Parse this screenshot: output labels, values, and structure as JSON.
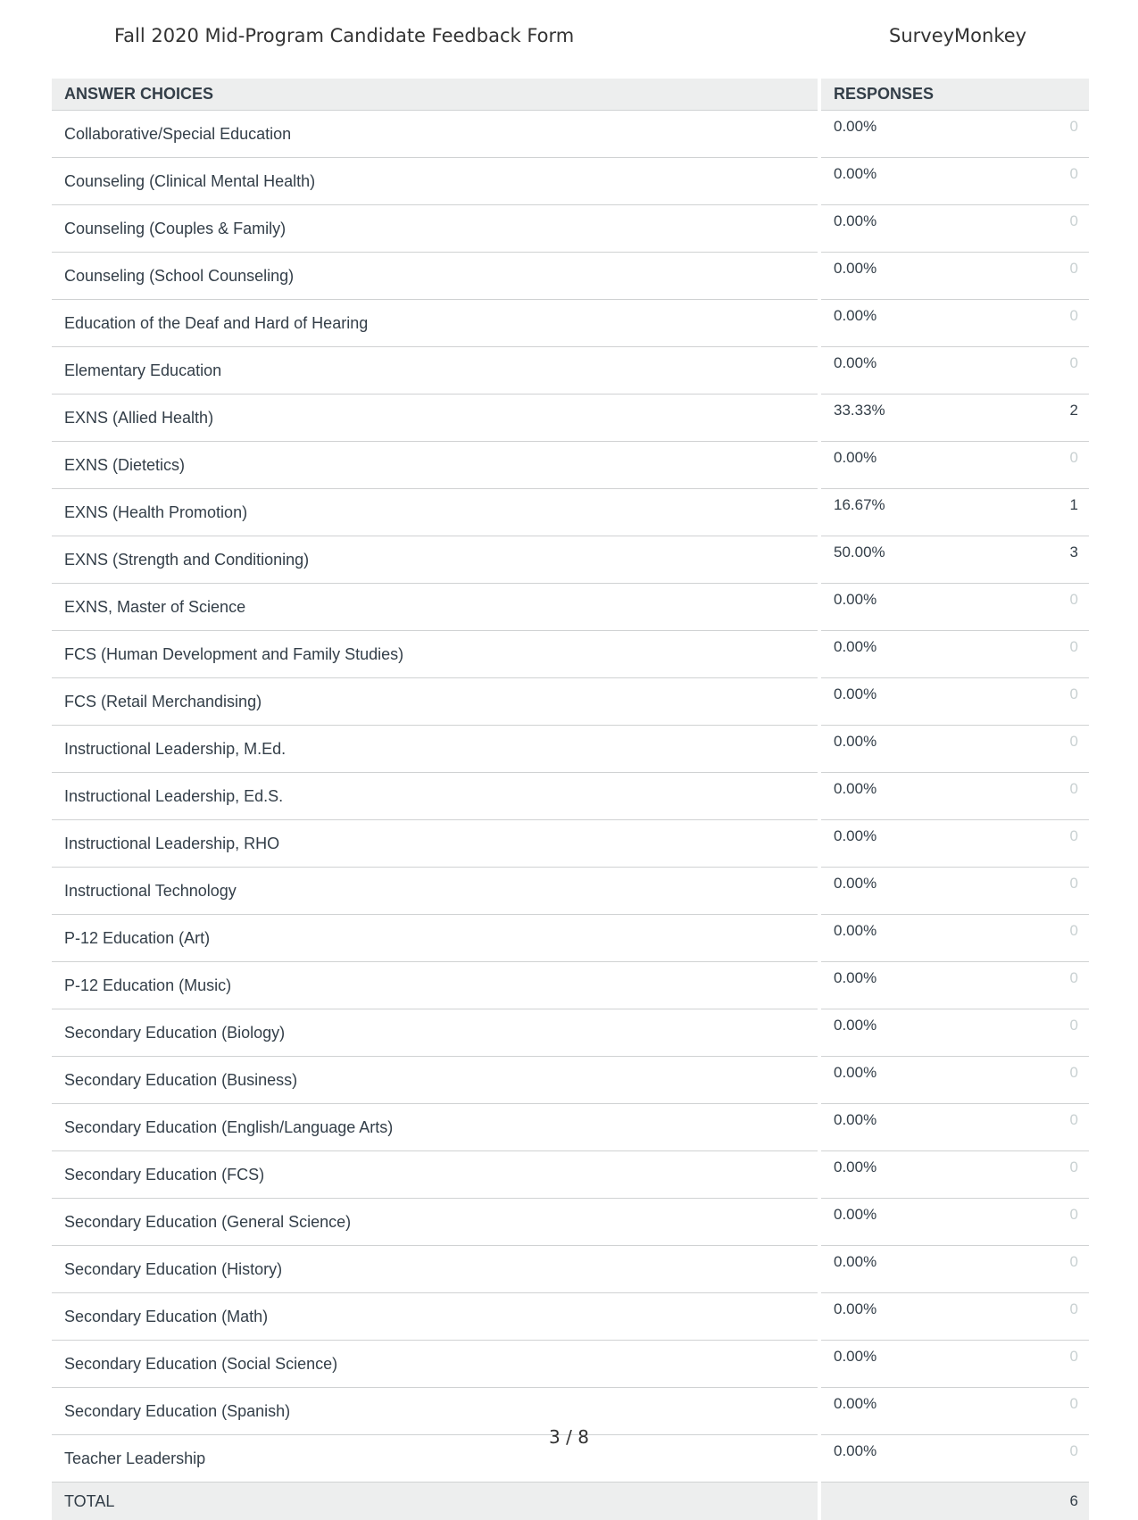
{
  "header": {
    "title": "Fall 2020 Mid-Program Candidate Feedback Form",
    "brand": "SurveyMonkey"
  },
  "table": {
    "col_choices": "ANSWER CHOICES",
    "col_responses": "RESPONSES",
    "rows": [
      {
        "label": "Collaborative/Special Education",
        "percent": "0.00%",
        "count": "0"
      },
      {
        "label": "Counseling (Clinical Mental Health)",
        "percent": "0.00%",
        "count": "0"
      },
      {
        "label": "Counseling (Couples & Family)",
        "percent": "0.00%",
        "count": "0"
      },
      {
        "label": "Counseling (School Counseling)",
        "percent": "0.00%",
        "count": "0"
      },
      {
        "label": "Education of the Deaf and Hard of Hearing",
        "percent": "0.00%",
        "count": "0"
      },
      {
        "label": "Elementary Education",
        "percent": "0.00%",
        "count": "0"
      },
      {
        "label": "EXNS (Allied Health)",
        "percent": "33.33%",
        "count": "2"
      },
      {
        "label": "EXNS (Dietetics)",
        "percent": "0.00%",
        "count": "0"
      },
      {
        "label": "EXNS (Health Promotion)",
        "percent": "16.67%",
        "count": "1"
      },
      {
        "label": "EXNS (Strength and Conditioning)",
        "percent": "50.00%",
        "count": "3"
      },
      {
        "label": "EXNS, Master of Science",
        "percent": "0.00%",
        "count": "0"
      },
      {
        "label": "FCS (Human Development and Family Studies)",
        "percent": "0.00%",
        "count": "0"
      },
      {
        "label": "FCS (Retail Merchandising)",
        "percent": "0.00%",
        "count": "0"
      },
      {
        "label": "Instructional Leadership, M.Ed.",
        "percent": "0.00%",
        "count": "0"
      },
      {
        "label": "Instructional Leadership, Ed.S.",
        "percent": "0.00%",
        "count": "0"
      },
      {
        "label": "Instructional Leadership, RHO",
        "percent": "0.00%",
        "count": "0"
      },
      {
        "label": "Instructional Technology",
        "percent": "0.00%",
        "count": "0"
      },
      {
        "label": "P-12 Education (Art)",
        "percent": "0.00%",
        "count": "0"
      },
      {
        "label": "P-12 Education (Music)",
        "percent": "0.00%",
        "count": "0"
      },
      {
        "label": "Secondary Education (Biology)",
        "percent": "0.00%",
        "count": "0"
      },
      {
        "label": "Secondary Education (Business)",
        "percent": "0.00%",
        "count": "0"
      },
      {
        "label": "Secondary Education (English/Language Arts)",
        "percent": "0.00%",
        "count": "0"
      },
      {
        "label": "Secondary Education (FCS)",
        "percent": "0.00%",
        "count": "0"
      },
      {
        "label": "Secondary Education (General Science)",
        "percent": "0.00%",
        "count": "0"
      },
      {
        "label": "Secondary Education (History)",
        "percent": "0.00%",
        "count": "0"
      },
      {
        "label": "Secondary Education (Math)",
        "percent": "0.00%",
        "count": "0"
      },
      {
        "label": "Secondary Education (Social Science)",
        "percent": "0.00%",
        "count": "0"
      },
      {
        "label": "Secondary Education (Spanish)",
        "percent": "0.00%",
        "count": "0"
      },
      {
        "label": "Teacher Leadership",
        "percent": "0.00%",
        "count": "0"
      }
    ],
    "total_label": "TOTAL",
    "total_count": "6"
  },
  "footer": {
    "page": "3 / 8"
  },
  "colors": {
    "header_bg": "#edeeee",
    "text": "#333e48",
    "zero_count": "#c9d1d2",
    "bar_fill": "#bdf7db"
  }
}
